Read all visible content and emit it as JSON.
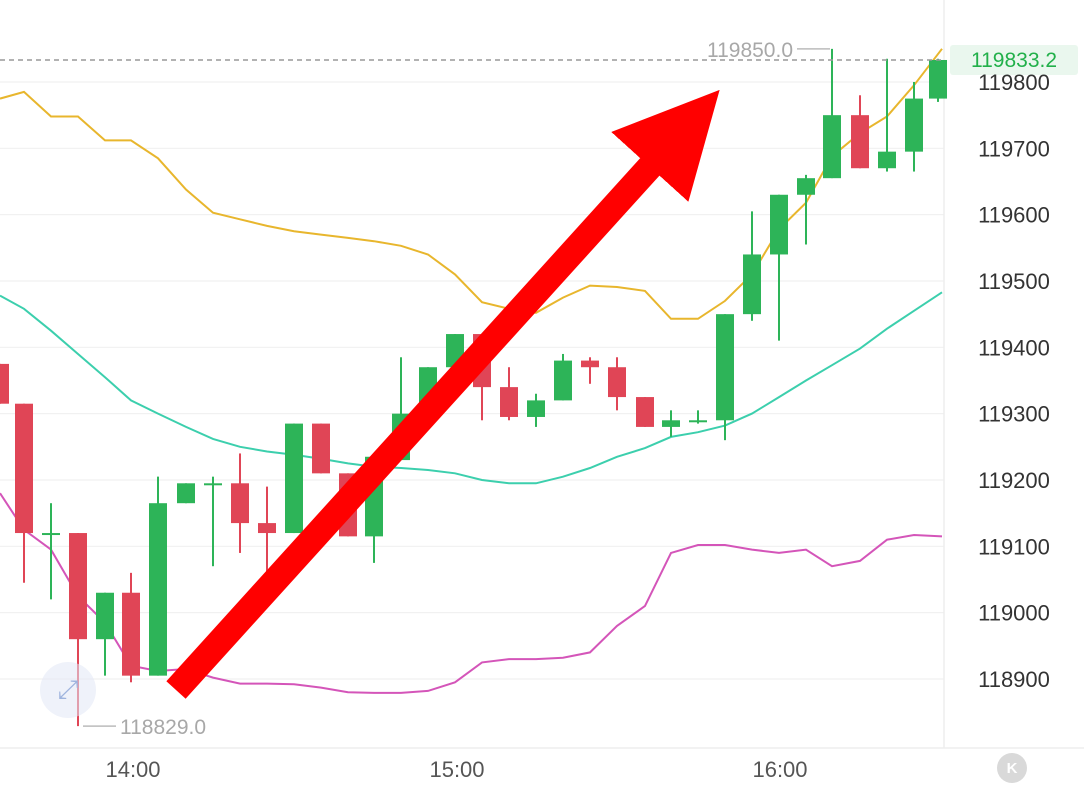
{
  "chart_data": {
    "type": "candlestick",
    "y_axis": {
      "ylim": [
        118800,
        119900
      ],
      "ticks": [
        119800,
        119700,
        119600,
        119500,
        119400,
        119300,
        119200,
        119100,
        119000,
        118900
      ],
      "position": "right"
    },
    "x_axis": {
      "ticks": [
        "14:00",
        "15:00",
        "16:00"
      ]
    },
    "current_price": "119833.2",
    "high_marker": "119850.0",
    "low_marker": "118829.0",
    "colors": {
      "up": "#2db458",
      "down": "#e04556",
      "upper_band": "#e8b62d",
      "middle_band": "#3ccfad",
      "lower_band": "#d455b9",
      "arrow": "#ff0000",
      "price_line": "#999999"
    },
    "candles": [
      {
        "x": 0,
        "open": 119375,
        "high": 119375,
        "low": 119315,
        "close": 119315
      },
      {
        "x": 24,
        "open": 119315,
        "high": 119315,
        "low": 119045,
        "close": 119120
      },
      {
        "x": 51,
        "open": 119120,
        "high": 119165,
        "low": 119020,
        "close": 119120
      },
      {
        "x": 78,
        "open": 119120,
        "high": 119120,
        "low": 118829,
        "close": 118960
      },
      {
        "x": 105,
        "open": 118960,
        "high": 119030,
        "low": 118905,
        "close": 119030
      },
      {
        "x": 131,
        "open": 119030,
        "high": 119060,
        "low": 118895,
        "close": 118905
      },
      {
        "x": 158,
        "open": 118905,
        "high": 119205,
        "low": 118905,
        "close": 119165
      },
      {
        "x": 186,
        "open": 119165,
        "high": 119195,
        "low": 119165,
        "close": 119195
      },
      {
        "x": 213,
        "open": 119195,
        "high": 119205,
        "low": 119070,
        "close": 119195
      },
      {
        "x": 240,
        "open": 119195,
        "high": 119240,
        "low": 119090,
        "close": 119135
      },
      {
        "x": 267,
        "open": 119135,
        "high": 119190,
        "low": 119035,
        "close": 119120
      },
      {
        "x": 294,
        "open": 119120,
        "high": 119285,
        "low": 119120,
        "close": 119285
      },
      {
        "x": 321,
        "open": 119285,
        "high": 119285,
        "low": 119210,
        "close": 119210
      },
      {
        "x": 348,
        "open": 119210,
        "high": 119210,
        "low": 119115,
        "close": 119115
      },
      {
        "x": 374,
        "open": 119115,
        "high": 119235,
        "low": 119075,
        "close": 119235
      },
      {
        "x": 401,
        "open": 119230,
        "high": 119385,
        "low": 119230,
        "close": 119300
      },
      {
        "x": 428,
        "open": 119300,
        "high": 119370,
        "low": 119280,
        "close": 119370
      },
      {
        "x": 455,
        "open": 119370,
        "high": 119420,
        "low": 119370,
        "close": 119420
      },
      {
        "x": 482,
        "open": 119420,
        "high": 119420,
        "low": 119290,
        "close": 119340
      },
      {
        "x": 509,
        "open": 119340,
        "high": 119370,
        "low": 119290,
        "close": 119295
      },
      {
        "x": 536,
        "open": 119295,
        "high": 119330,
        "low": 119280,
        "close": 119320
      },
      {
        "x": 563,
        "open": 119320,
        "high": 119390,
        "low": 119320,
        "close": 119380
      },
      {
        "x": 590,
        "open": 119380,
        "high": 119385,
        "low": 119345,
        "close": 119370
      },
      {
        "x": 617,
        "open": 119370,
        "high": 119385,
        "low": 119305,
        "close": 119325
      },
      {
        "x": 645,
        "open": 119325,
        "high": 119325,
        "low": 119280,
        "close": 119280
      },
      {
        "x": 671,
        "open": 119280,
        "high": 119305,
        "low": 119265,
        "close": 119290
      },
      {
        "x": 698,
        "open": 119290,
        "high": 119305,
        "low": 119285,
        "close": 119290
      },
      {
        "x": 725,
        "open": 119290,
        "high": 119450,
        "low": 119260,
        "close": 119450
      },
      {
        "x": 752,
        "open": 119450,
        "high": 119605,
        "low": 119440,
        "close": 119540
      },
      {
        "x": 779,
        "open": 119540,
        "high": 119630,
        "low": 119410,
        "close": 119630
      },
      {
        "x": 806,
        "open": 119630,
        "high": 119660,
        "low": 119555,
        "close": 119655
      },
      {
        "x": 832,
        "open": 119655,
        "high": 119850,
        "low": 119655,
        "close": 119750
      },
      {
        "x": 860,
        "open": 119750,
        "high": 119780,
        "low": 119670,
        "close": 119670
      },
      {
        "x": 887,
        "open": 119670,
        "high": 119835,
        "low": 119665,
        "close": 119695
      },
      {
        "x": 914,
        "open": 119695,
        "high": 119800,
        "low": 119665,
        "close": 119775
      },
      {
        "x": 938,
        "open": 119775,
        "high": 119835,
        "low": 119770,
        "close": 119833.2
      }
    ],
    "upper_band": [
      [
        0,
        119775
      ],
      [
        24,
        119785
      ],
      [
        51,
        119748
      ],
      [
        78,
        119748
      ],
      [
        105,
        119712
      ],
      [
        131,
        119712
      ],
      [
        158,
        119685
      ],
      [
        186,
        119638
      ],
      [
        213,
        119603
      ],
      [
        240,
        119593
      ],
      [
        267,
        119583
      ],
      [
        294,
        119575
      ],
      [
        321,
        119570
      ],
      [
        348,
        119565
      ],
      [
        374,
        119560
      ],
      [
        401,
        119553
      ],
      [
        428,
        119540
      ],
      [
        455,
        119510
      ],
      [
        482,
        119468
      ],
      [
        509,
        119458
      ],
      [
        536,
        119452
      ],
      [
        563,
        119475
      ],
      [
        590,
        119493
      ],
      [
        617,
        119491
      ],
      [
        645,
        119485
      ],
      [
        671,
        119443
      ],
      [
        698,
        119443
      ],
      [
        725,
        119470
      ],
      [
        752,
        119510
      ],
      [
        779,
        119578
      ],
      [
        806,
        119618
      ],
      [
        832,
        119688
      ],
      [
        860,
        119723
      ],
      [
        887,
        119748
      ],
      [
        914,
        119795
      ],
      [
        942,
        119850
      ]
    ],
    "middle_band": [
      [
        0,
        119478
      ],
      [
        24,
        119458
      ],
      [
        51,
        119425
      ],
      [
        78,
        119390
      ],
      [
        105,
        119355
      ],
      [
        131,
        119320
      ],
      [
        158,
        119300
      ],
      [
        186,
        119280
      ],
      [
        213,
        119262
      ],
      [
        240,
        119250
      ],
      [
        267,
        119243
      ],
      [
        294,
        119238
      ],
      [
        321,
        119232
      ],
      [
        348,
        119225
      ],
      [
        374,
        119220
      ],
      [
        401,
        119218
      ],
      [
        428,
        119215
      ],
      [
        455,
        119210
      ],
      [
        482,
        119200
      ],
      [
        509,
        119195
      ],
      [
        536,
        119195
      ],
      [
        563,
        119205
      ],
      [
        590,
        119218
      ],
      [
        617,
        119235
      ],
      [
        645,
        119248
      ],
      [
        671,
        119265
      ],
      [
        698,
        119272
      ],
      [
        725,
        119282
      ],
      [
        752,
        119300
      ],
      [
        779,
        119325
      ],
      [
        806,
        119350
      ],
      [
        832,
        119373
      ],
      [
        860,
        119398
      ],
      [
        887,
        119428
      ],
      [
        914,
        119455
      ],
      [
        942,
        119483
      ]
    ],
    "lower_band": [
      [
        0,
        119180
      ],
      [
        24,
        119125
      ],
      [
        51,
        119095
      ],
      [
        78,
        119025
      ],
      [
        105,
        118985
      ],
      [
        131,
        118920
      ],
      [
        158,
        118912
      ],
      [
        186,
        118915
      ],
      [
        213,
        118902
      ],
      [
        240,
        118893
      ],
      [
        267,
        118893
      ],
      [
        294,
        118892
      ],
      [
        321,
        118887
      ],
      [
        348,
        118880
      ],
      [
        374,
        118879
      ],
      [
        401,
        118879
      ],
      [
        428,
        118882
      ],
      [
        455,
        118895
      ],
      [
        482,
        118925
      ],
      [
        509,
        118930
      ],
      [
        536,
        118930
      ],
      [
        563,
        118932
      ],
      [
        590,
        118940
      ],
      [
        617,
        118980
      ],
      [
        645,
        119010
      ],
      [
        671,
        119090
      ],
      [
        698,
        119102
      ],
      [
        725,
        119102
      ],
      [
        752,
        119095
      ],
      [
        779,
        119090
      ],
      [
        806,
        119095
      ],
      [
        832,
        119070
      ],
      [
        860,
        119078
      ],
      [
        887,
        119110
      ],
      [
        914,
        119117
      ],
      [
        942,
        119115
      ]
    ]
  },
  "controls": {
    "expand_icon": "expand-icon",
    "reset_icon": "reset-icon",
    "reset_glyph": "K"
  }
}
